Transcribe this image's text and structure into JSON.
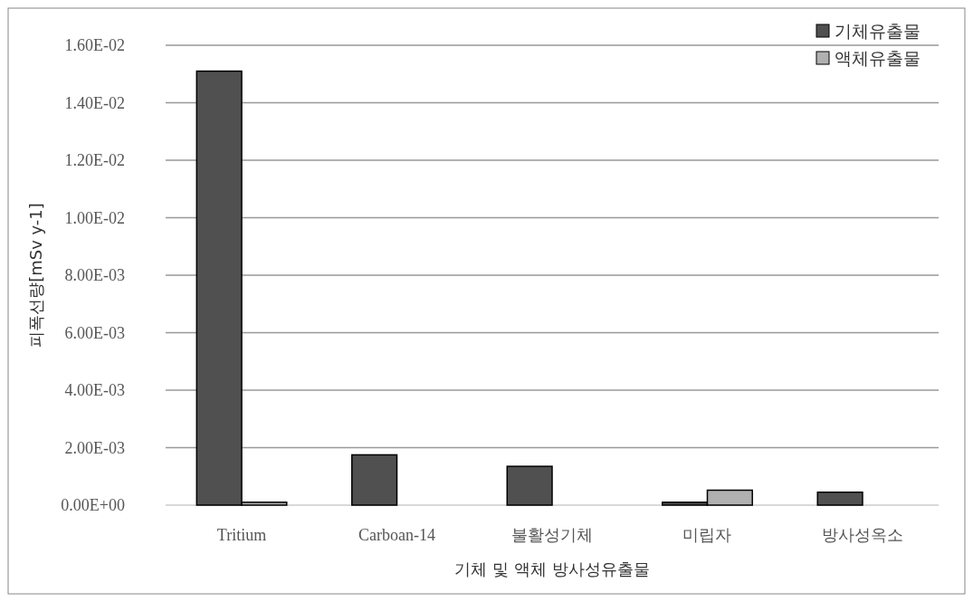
{
  "chart_data": {
    "type": "bar",
    "xlabel": "기체 및 액체 방사성유출물",
    "ylabel": "피폭선량[mSv y-1]",
    "categories": [
      "Tritium",
      "Carboan-14",
      "불활성기체",
      "미립자",
      "방사성옥소"
    ],
    "series": [
      {
        "name": "기체유출물",
        "color": "#505050",
        "values": [
          0.0151,
          0.00175,
          0.00135,
          0.0001,
          0.00045
        ]
      },
      {
        "name": "액체유출물",
        "color": "#b0b0b0",
        "values": [
          0.0001,
          0,
          0,
          0.00052,
          0
        ]
      }
    ],
    "ylim": [
      0,
      0.016
    ],
    "yticks": [
      {
        "value": 0,
        "label": "0.00E+00"
      },
      {
        "value": 0.002,
        "label": "2.00E-03"
      },
      {
        "value": 0.004,
        "label": "4.00E-03"
      },
      {
        "value": 0.006,
        "label": "6.00E-03"
      },
      {
        "value": 0.008,
        "label": "8.00E-03"
      },
      {
        "value": 0.01,
        "label": "1.00E-02"
      },
      {
        "value": 0.012,
        "label": "1.20E-02"
      },
      {
        "value": 0.014,
        "label": "1.40E-02"
      },
      {
        "value": 0.016,
        "label": "1.60E-02"
      }
    ],
    "grid": "y",
    "legend": "top right"
  }
}
